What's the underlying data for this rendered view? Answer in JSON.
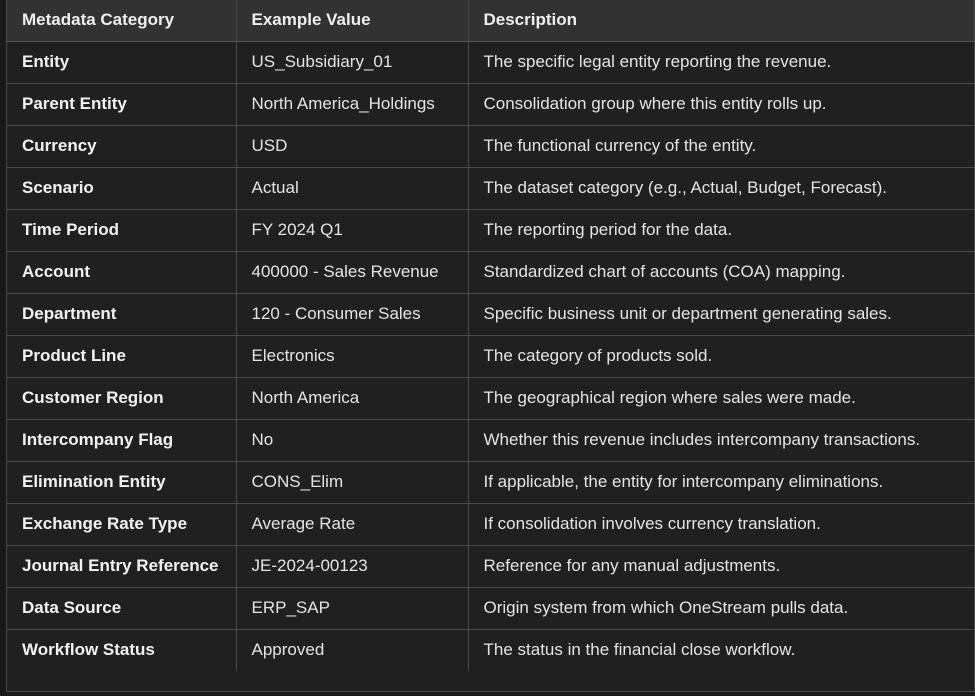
{
  "table": {
    "headers": [
      "Metadata Category",
      "Example Value",
      "Description"
    ],
    "rows": [
      [
        "Entity",
        "US_Subsidiary_01",
        "The specific legal entity reporting the revenue."
      ],
      [
        "Parent Entity",
        "North America_Holdings",
        "Consolidation group where this entity rolls up."
      ],
      [
        "Currency",
        "USD",
        "The functional currency of the entity."
      ],
      [
        "Scenario",
        "Actual",
        "The dataset category (e.g., Actual, Budget, Forecast)."
      ],
      [
        "Time Period",
        "FY 2024 Q1",
        "The reporting period for the data."
      ],
      [
        "Account",
        "400000 - Sales Revenue",
        "Standardized chart of accounts (COA) mapping."
      ],
      [
        "Department",
        "120 - Consumer Sales",
        "Specific business unit or department generating sales."
      ],
      [
        "Product Line",
        "Electronics",
        "The category of products sold."
      ],
      [
        "Customer Region",
        "North America",
        "The geographical region where sales were made."
      ],
      [
        "Intercompany Flag",
        "No",
        "Whether this revenue includes intercompany transactions."
      ],
      [
        "Elimination Entity",
        "CONS_Elim",
        "If applicable, the entity for intercompany eliminations."
      ],
      [
        "Exchange Rate Type",
        "Average Rate",
        "If consolidation involves currency translation."
      ],
      [
        "Journal Entry Reference",
        "JE-2024-00123",
        "Reference for any manual adjustments."
      ],
      [
        "Data Source",
        "ERP_SAP",
        "Origin system from which OneStream pulls data."
      ],
      [
        "Workflow Status",
        "Approved",
        "The status in the financial close workflow."
      ]
    ]
  }
}
